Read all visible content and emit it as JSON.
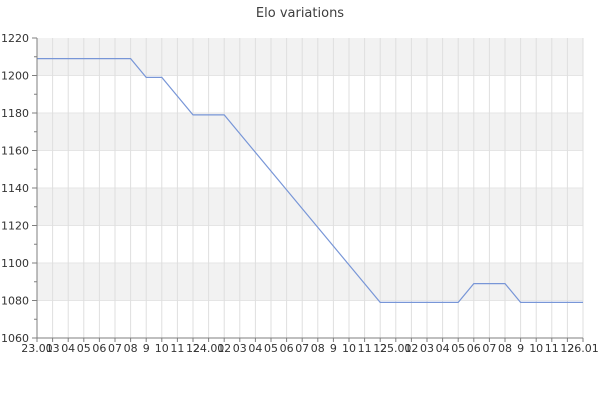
{
  "title": "Elo variations",
  "chart_data": {
    "type": "line",
    "title": "Elo variations",
    "xlabel": "",
    "ylabel": "",
    "legend": "none",
    "grid": "on",
    "alternating_bands": true,
    "ylim": [
      1060,
      1220
    ],
    "y_major_step": 20,
    "y_minor_step": 10,
    "y_tick_labels": [
      "1220",
      "1200",
      "1180",
      "1160",
      "1140",
      "1120",
      "1100",
      "1080",
      "1060"
    ],
    "x_tick_labels": [
      "23.01",
      "03",
      "04",
      "05",
      "06",
      "07",
      "08",
      "9",
      "10",
      "11",
      "12",
      "24.01",
      "02",
      "03",
      "04",
      "05",
      "06",
      "07",
      "08",
      "9",
      "10",
      "11",
      "12",
      "25.01",
      "02",
      "03",
      "04",
      "05",
      "06",
      "07",
      "08",
      "9",
      "10",
      "11",
      "12",
      "26.01"
    ],
    "series": [
      {
        "name": "Elo",
        "values": [
          1209,
          1209,
          1209,
          1209,
          1209,
          1209,
          1209,
          1199,
          1199,
          1189,
          1179,
          1179,
          1179,
          1169,
          1159,
          1149,
          1139,
          1129,
          1119,
          1109,
          1099,
          1089,
          1079,
          1079,
          1079,
          1079,
          1079,
          1079,
          1089,
          1089,
          1089,
          1079,
          1079,
          1079,
          1079,
          1079
        ]
      }
    ],
    "colors": {
      "series_line": "#7896d7",
      "band_fill": "#f2f2f2",
      "v_grid": "#dfdfdf",
      "h_grid": "#e5e5e5",
      "axis": "#7f7f7f",
      "tick_text": "#333333",
      "title_text": "#3d3d3d"
    }
  }
}
